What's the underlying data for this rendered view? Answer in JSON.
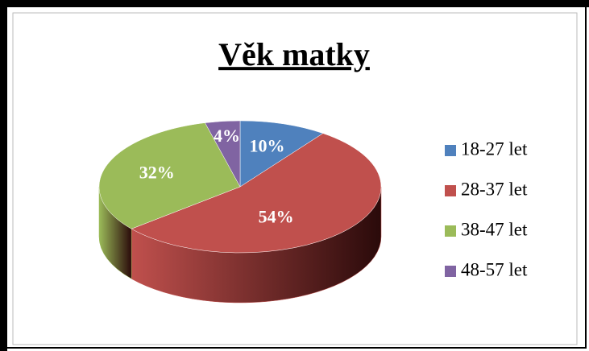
{
  "chart_data": {
    "type": "pie",
    "title": "Věk matky",
    "categories": [
      "18-27 let",
      "28-37 let",
      "38-47 let",
      "48-57 let"
    ],
    "values": [
      10,
      54,
      32,
      4
    ],
    "value_labels": [
      "10%",
      "54%",
      "32%",
      "4%"
    ],
    "colors": [
      "#4f81bd",
      "#c0504d",
      "#9bbb59",
      "#8064a2"
    ],
    "legend": "right"
  }
}
